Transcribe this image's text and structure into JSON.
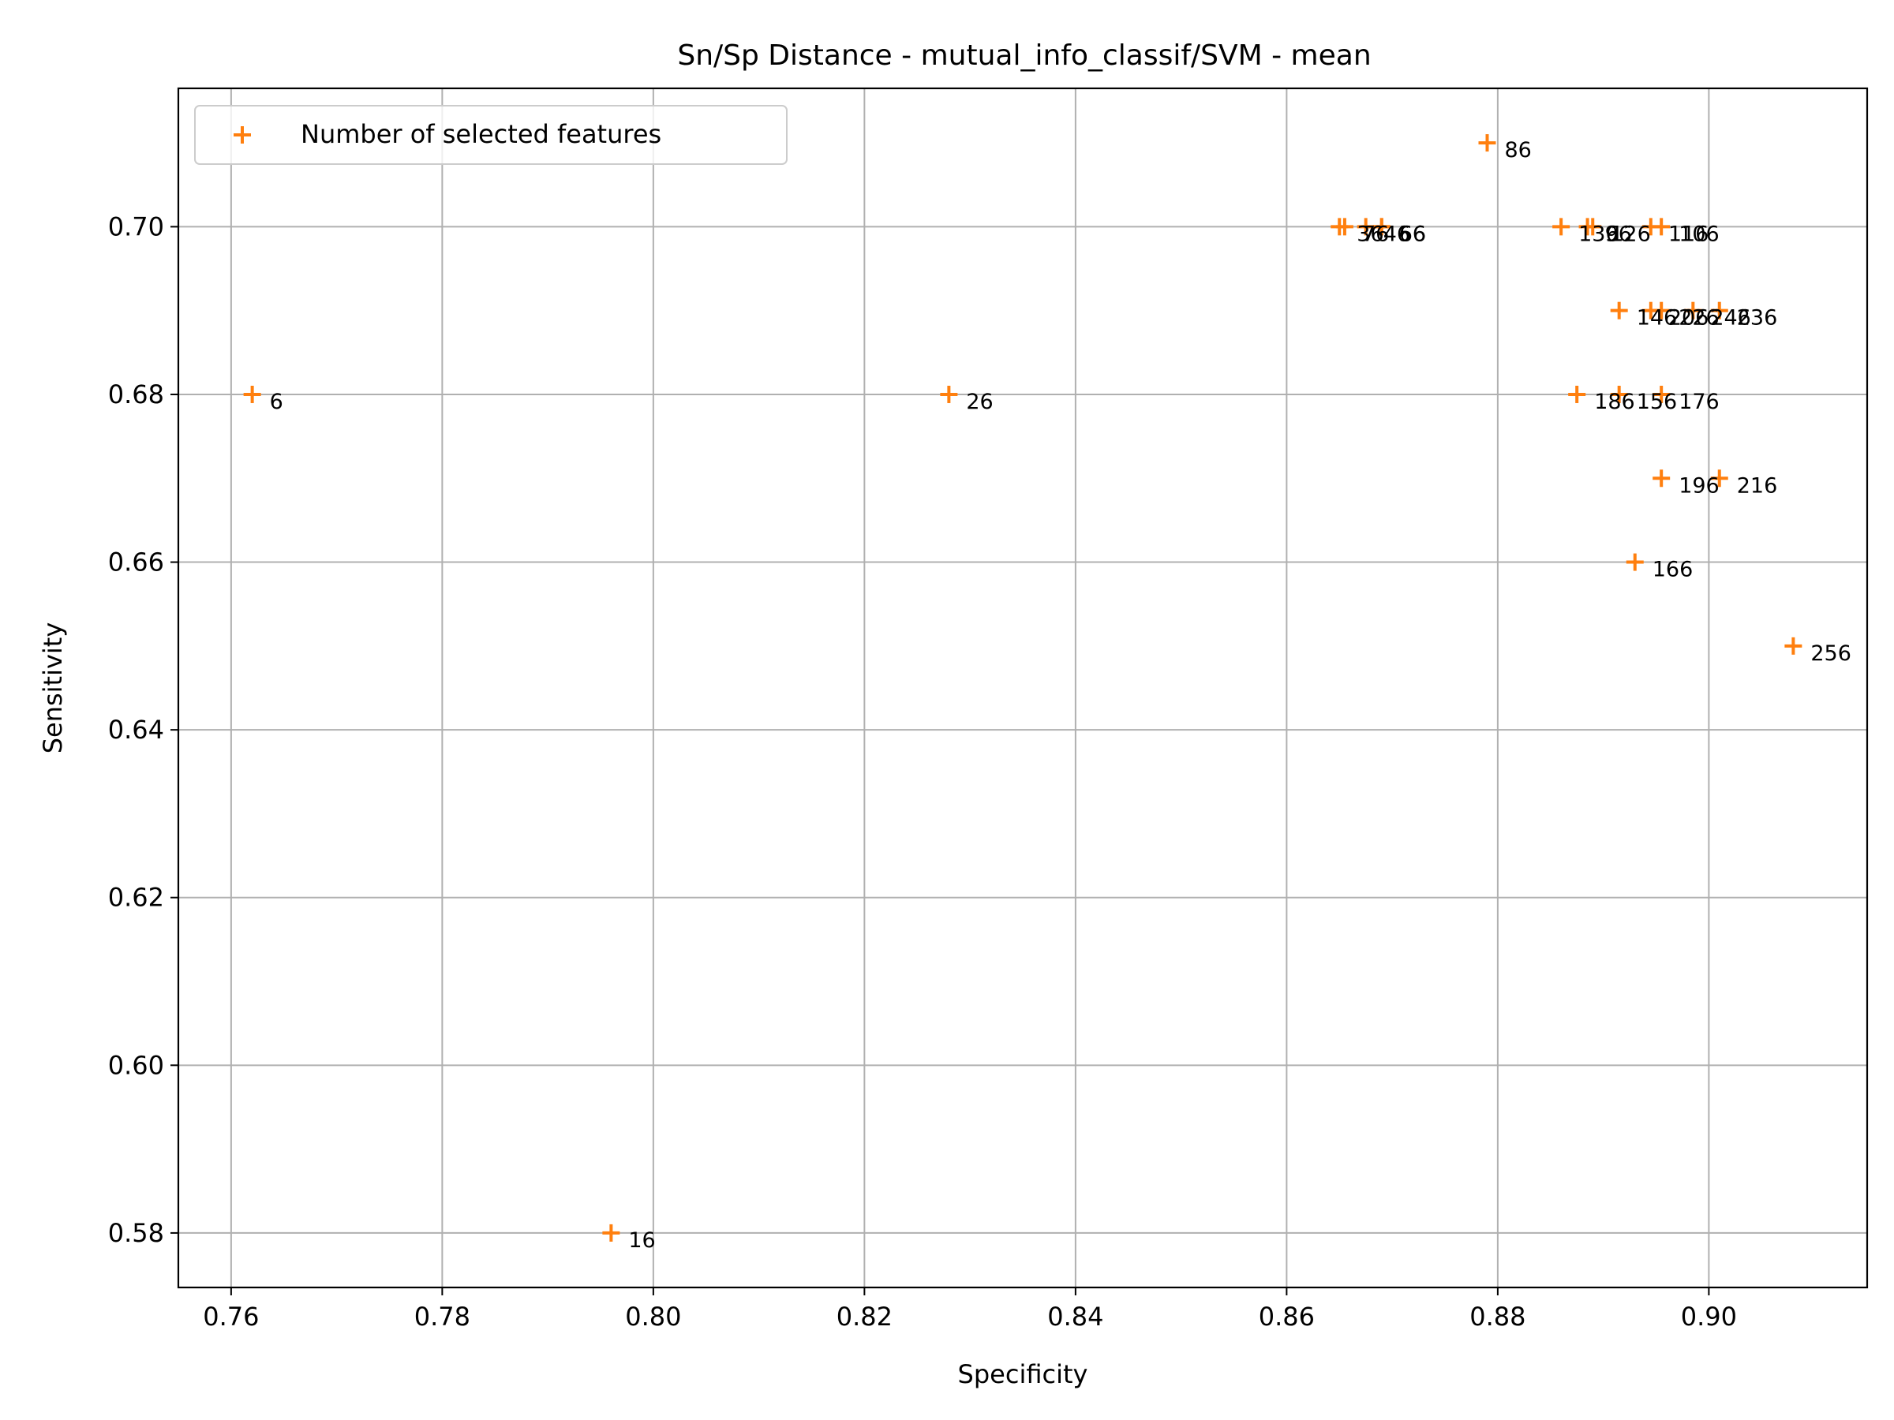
{
  "chart_data": {
    "type": "scatter",
    "title": "Sn/Sp Distance - mutual_info_classif/SVM - mean",
    "xlabel": "Specificity",
    "ylabel": "Sensitivity",
    "xlim": [
      0.755,
      0.915
    ],
    "ylim": [
      0.5735,
      0.7165
    ],
    "xticks": [
      0.76,
      0.78,
      0.8,
      0.82,
      0.84,
      0.86,
      0.88,
      0.9
    ],
    "xtick_labels": [
      "0.76",
      "0.78",
      "0.80",
      "0.82",
      "0.84",
      "0.86",
      "0.88",
      "0.90"
    ],
    "yticks": [
      0.58,
      0.6,
      0.62,
      0.64,
      0.66,
      0.68,
      0.7
    ],
    "ytick_labels": [
      "0.58",
      "0.60",
      "0.62",
      "0.64",
      "0.66",
      "0.68",
      "0.70"
    ],
    "grid": true,
    "legend": {
      "location": "upper-left",
      "entries": [
        "Number of selected features"
      ]
    },
    "marker": "+",
    "color": "#ff7f0e",
    "series": [
      {
        "name": "Number of selected features",
        "points": [
          {
            "x": 0.762,
            "y": 0.68,
            "label": "6"
          },
          {
            "x": 0.796,
            "y": 0.58,
            "label": "16"
          },
          {
            "x": 0.828,
            "y": 0.68,
            "label": "26"
          },
          {
            "x": 0.865,
            "y": 0.7,
            "label": "36"
          },
          {
            "x": 0.8675,
            "y": 0.7,
            "label": "46"
          },
          {
            "x": 0.869,
            "y": 0.7,
            "label": "56"
          },
          {
            "x": 0.869,
            "y": 0.7,
            "label": "66"
          },
          {
            "x": 0.8655,
            "y": 0.7,
            "label": "76"
          },
          {
            "x": 0.879,
            "y": 0.71,
            "label": "86"
          },
          {
            "x": 0.8885,
            "y": 0.7,
            "label": "96"
          },
          {
            "x": 0.8955,
            "y": 0.7,
            "label": "106"
          },
          {
            "x": 0.8945,
            "y": 0.7,
            "label": "116"
          },
          {
            "x": 0.889,
            "y": 0.7,
            "label": "126"
          },
          {
            "x": 0.886,
            "y": 0.7,
            "label": "136"
          },
          {
            "x": 0.8915,
            "y": 0.69,
            "label": "146"
          },
          {
            "x": 0.8915,
            "y": 0.68,
            "label": "156"
          },
          {
            "x": 0.893,
            "y": 0.66,
            "label": "166"
          },
          {
            "x": 0.8955,
            "y": 0.68,
            "label": "176"
          },
          {
            "x": 0.8875,
            "y": 0.68,
            "label": "186"
          },
          {
            "x": 0.8955,
            "y": 0.67,
            "label": "196"
          },
          {
            "x": 0.8945,
            "y": 0.69,
            "label": "206"
          },
          {
            "x": 0.901,
            "y": 0.67,
            "label": "216"
          },
          {
            "x": 0.8955,
            "y": 0.69,
            "label": "226"
          },
          {
            "x": 0.901,
            "y": 0.69,
            "label": "236"
          },
          {
            "x": 0.8985,
            "y": 0.69,
            "label": "246"
          },
          {
            "x": 0.908,
            "y": 0.65,
            "label": "256"
          }
        ]
      }
    ]
  }
}
